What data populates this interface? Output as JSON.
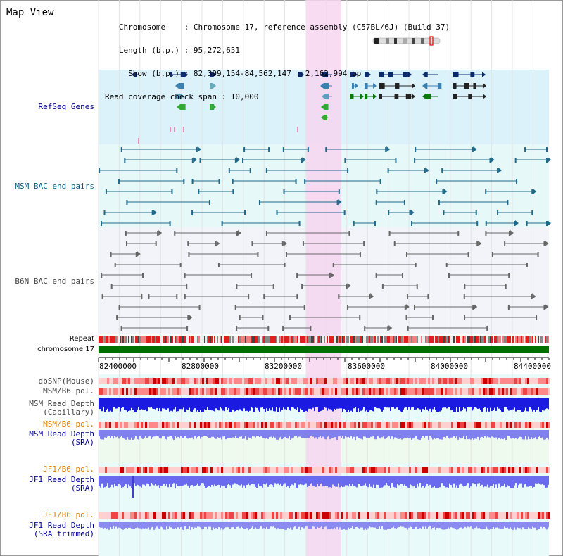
{
  "header": {
    "title": "Map View",
    "info_lines": [
      "   Chromosome    : Chromosome 17, reference assembly (C57BL/6J) (Build 37)",
      "   Length (b.p.) : 95,272,651",
      "     Show (b.p.) : 82,399,154-84,562,147 : 2,162,994 bp",
      "Read coverage check span : 10,000"
    ]
  },
  "tracks": {
    "refseq": "RefSeq Genes",
    "msm_bac": "MSM BAC end pairs",
    "b6n_bac": "B6N BAC end pairs",
    "repeat": "Repeat",
    "chromosome": "chromosome 17",
    "dbsnp": "dbSNP(Mouse)",
    "msm_b6_pol": "MSM/B6 pol.",
    "msm_read_depth_cap_1": "MSM Read Depth",
    "msm_read_depth_cap_2": "(Capillary)",
    "msm_b6_pol_2": "MSM/B6 pol.",
    "msm_read_depth_sra_1": "MSM Read Depth",
    "msm_read_depth_sra_2": "(SRA)",
    "jf1_b6_pol": "JF1/B6 pol.",
    "jf1_read_depth_sra_1": "JF1 Read Depth",
    "jf1_read_depth_sra_2": "(SRA)",
    "jf1_b6_pol_2": "JF1/B6 pol.",
    "jf1_read_depth_trim_1": "JF1 Read Depth",
    "jf1_read_depth_trim_2": "(SRA trimmed)"
  },
  "axis": {
    "ticks": [
      "82400000",
      "82800000",
      "83200000",
      "83600000",
      "84000000",
      "84400000"
    ]
  },
  "colors": {
    "refseq_bg": "#dcf2fa",
    "msm_bg": "#e6f8f8",
    "b6n_bg": "#f2f4fa",
    "highlight": "#f6d6f0",
    "chromosome_bar": "#007000",
    "label_blue": "#00008b",
    "label_orange": "#e08000"
  }
}
